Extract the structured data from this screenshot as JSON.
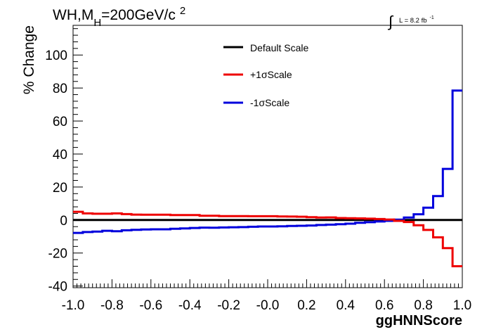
{
  "chart_data": {
    "type": "line",
    "title": "WH,M_H=200GeV/c^2",
    "title_parts": {
      "main": "WH,M",
      "sub": "H",
      "rest": "=200GeV/c",
      "sup": "2"
    },
    "luminosity": {
      "symbol": "∫",
      "text": "L = 8.2 fb",
      "sup": "-1"
    },
    "xlabel": "ggHNNScore",
    "ylabel": "% Change",
    "xlim": [
      -1.0,
      1.0
    ],
    "ylim": [
      -41,
      118
    ],
    "x_ticks": [
      -1.0,
      -0.8,
      -0.6,
      -0.4,
      -0.2,
      0.0,
      0.2,
      0.4,
      0.6,
      0.8,
      1.0
    ],
    "x_tick_labels": [
      "-1.0",
      "-0.8",
      "-0.6",
      "-0.4",
      "-0.2",
      "-0.0",
      "0.2",
      "0.4",
      "0.6",
      "0.8",
      "1.0"
    ],
    "y_ticks": [
      -40,
      -20,
      0,
      20,
      40,
      60,
      80,
      100
    ],
    "y_tick_labels": [
      "-40",
      "-20",
      "0",
      "20",
      "40",
      "60",
      "80",
      "100"
    ],
    "grid": false,
    "legend_position": "top-center",
    "histogram_style": "step",
    "bin_edges": [
      -1.0,
      -0.95,
      -0.9,
      -0.85,
      -0.8,
      -0.75,
      -0.7,
      -0.65,
      -0.6,
      -0.55,
      -0.5,
      -0.45,
      -0.4,
      -0.35,
      -0.3,
      -0.25,
      -0.2,
      -0.15,
      -0.1,
      -0.05,
      0.0,
      0.05,
      0.1,
      0.15,
      0.2,
      0.25,
      0.3,
      0.35,
      0.4,
      0.45,
      0.5,
      0.55,
      0.6,
      0.65,
      0.7,
      0.75,
      0.8,
      0.85,
      0.9,
      0.95,
      1.0
    ],
    "series": [
      {
        "name": "Default Scale",
        "color": "#000000",
        "values": [
          0,
          0,
          0,
          0,
          0,
          0,
          0,
          0,
          0,
          0,
          0,
          0,
          0,
          0,
          0,
          0,
          0,
          0,
          0,
          0,
          0,
          0,
          0,
          0,
          0,
          0,
          0,
          0,
          0,
          0,
          0,
          0,
          0,
          0,
          0,
          0,
          0,
          0,
          0,
          0
        ]
      },
      {
        "name": "+1σScale",
        "color": "#ee0000",
        "values": [
          5.0,
          4.0,
          3.8,
          3.8,
          4.0,
          3.6,
          3.3,
          3.2,
          3.2,
          3.2,
          3.0,
          3.0,
          3.0,
          2.6,
          2.6,
          2.4,
          2.4,
          2.4,
          2.3,
          2.3,
          2.3,
          2.2,
          2.1,
          2.0,
          1.7,
          1.5,
          1.6,
          1.2,
          1.1,
          1.0,
          0.8,
          0.6,
          0.3,
          -0.5,
          -1.2,
          -3.2,
          -6.0,
          -10.5,
          -17.0,
          -28.0
        ]
      },
      {
        "name": "-1σScale",
        "color": "#0000dd",
        "values": [
          -7.8,
          -7.3,
          -7.0,
          -6.5,
          -6.8,
          -6.2,
          -5.9,
          -5.7,
          -5.6,
          -5.6,
          -5.3,
          -5.1,
          -4.8,
          -4.6,
          -4.7,
          -4.5,
          -4.4,
          -4.3,
          -4.1,
          -3.9,
          -3.9,
          -3.8,
          -3.6,
          -3.5,
          -3.3,
          -3.0,
          -2.8,
          -2.5,
          -2.2,
          -1.7,
          -1.3,
          -0.9,
          -0.5,
          0.2,
          1.5,
          3.5,
          7.5,
          14.5,
          31.0,
          78.5
        ]
      }
    ]
  }
}
